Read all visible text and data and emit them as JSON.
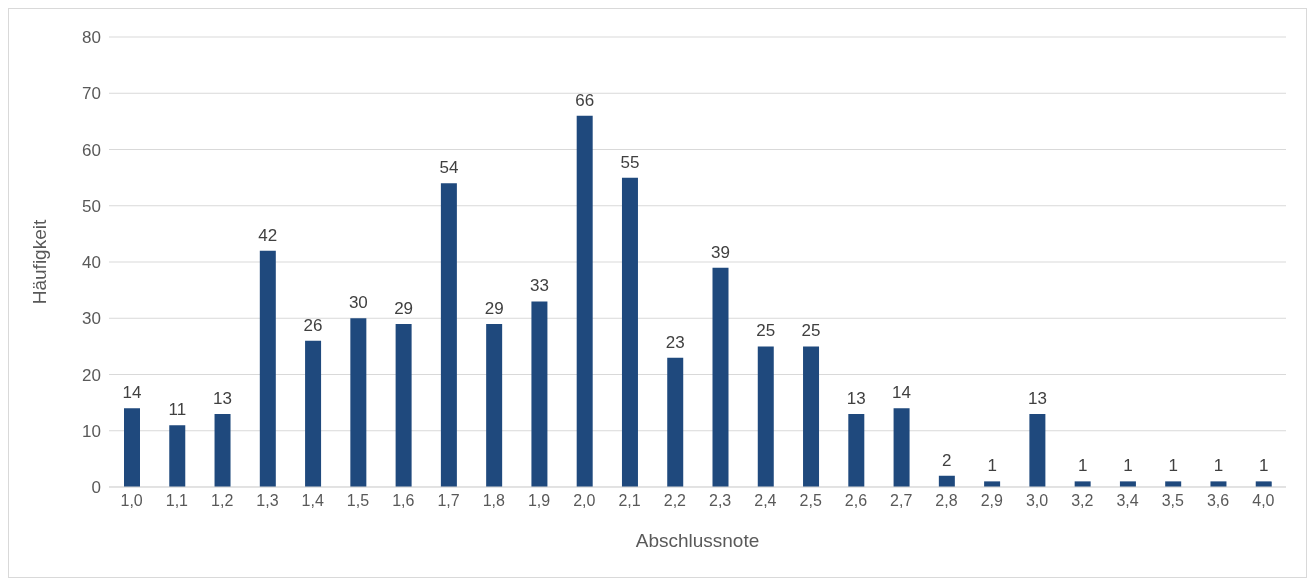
{
  "chart_data": {
    "type": "bar",
    "xlabel": "Abschlussnote",
    "ylabel": "Häufigkeit",
    "categories": [
      "1,0",
      "1,1",
      "1,2",
      "1,3",
      "1,4",
      "1,5",
      "1,6",
      "1,7",
      "1,8",
      "1,9",
      "2,0",
      "2,1",
      "2,2",
      "2,3",
      "2,4",
      "2,5",
      "2,6",
      "2,7",
      "2,8",
      "2,9",
      "3,0",
      "3,2",
      "3,4",
      "3,5",
      "3,6",
      "4,0"
    ],
    "values": [
      14,
      11,
      13,
      42,
      26,
      30,
      29,
      54,
      29,
      33,
      66,
      55,
      23,
      39,
      25,
      25,
      13,
      14,
      2,
      1,
      13,
      1,
      1,
      1,
      1,
      1
    ],
    "color": "#1f497d",
    "ylim": [
      0,
      80
    ],
    "yticks": [
      0,
      10,
      20,
      30,
      40,
      50,
      60,
      70,
      80
    ],
    "grid": "y",
    "data_labels": true
  }
}
